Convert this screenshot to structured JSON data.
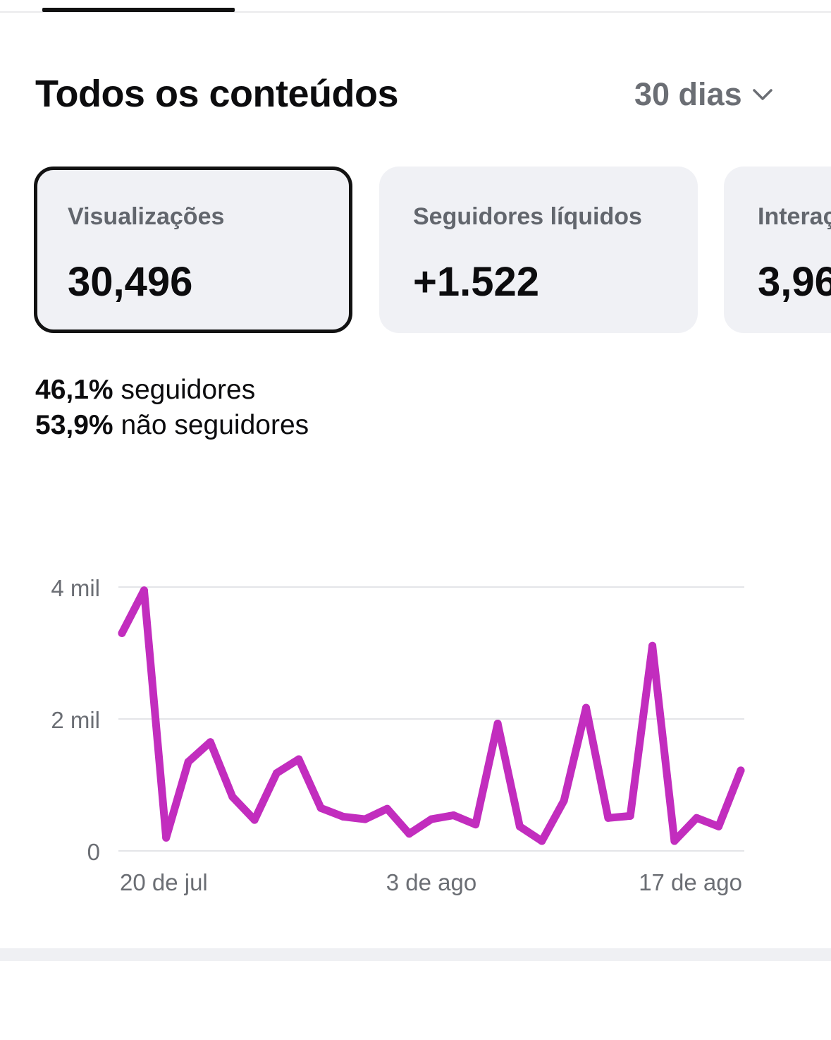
{
  "header": {
    "section_title": "Todos os conteúdos",
    "range_label": "30 dias",
    "range_icon": "chevron-down-icon"
  },
  "metrics": [
    {
      "label": "Visualizações",
      "value": "30,496",
      "selected": true
    },
    {
      "label": "Seguidores líquidos",
      "value": "+1.522",
      "selected": false
    },
    {
      "label": "Interações",
      "value": "3,96",
      "selected": false
    }
  ],
  "breakdown": [
    {
      "pct": "46,1%",
      "text": "seguidores"
    },
    {
      "pct": "53,9%",
      "text": "não seguidores"
    }
  ],
  "colors": {
    "series": "#c22dbe",
    "grid": "#e4e5e8",
    "card_bg": "#f0f1f5",
    "axis_text": "#6b6e74"
  },
  "chart_data": {
    "type": "line",
    "y_ticks": [
      "4 mil",
      "2 mil",
      "0"
    ],
    "y_tick_values": [
      4000,
      2000,
      0
    ],
    "x_ticks": [
      "20 de jul",
      "3 de ago",
      "17 de ago"
    ],
    "x_tick_indices": [
      0,
      14,
      28
    ],
    "ylim": [
      0,
      4000
    ],
    "grid": true,
    "series": [
      {
        "values": [
          3300,
          3950,
          200,
          1350,
          1650,
          820,
          470,
          1180,
          1390,
          650,
          520,
          480,
          640,
          260,
          480,
          540,
          400,
          1930,
          370,
          150,
          760,
          2170,
          500,
          530,
          3110,
          150,
          500,
          370,
          1220
        ]
      }
    ]
  }
}
